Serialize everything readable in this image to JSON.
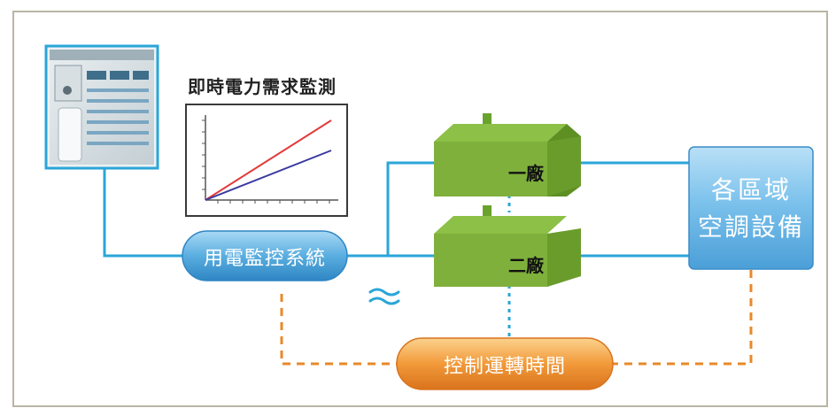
{
  "diagram": {
    "chart_title": "即時電力需求監測",
    "power_system_label": "用電監控系統",
    "control_label": "控制運轉時間",
    "factory_1_label": "一廠",
    "factory_2_label": "二廠",
    "ac_label": "各區域\n空調設備"
  },
  "colors": {
    "line_blue": "#2aa6d8",
    "dashed_orange": "#e8892a",
    "pill_blue": "#5aaee0",
    "pill_orange": "#f29a3a",
    "house_green": "#7fb03c",
    "box_blue": "#6ab8e6"
  },
  "icons": [
    "control-panel-photo",
    "line-chart-icon",
    "water-wave-icon",
    "factory-building-icon"
  ]
}
